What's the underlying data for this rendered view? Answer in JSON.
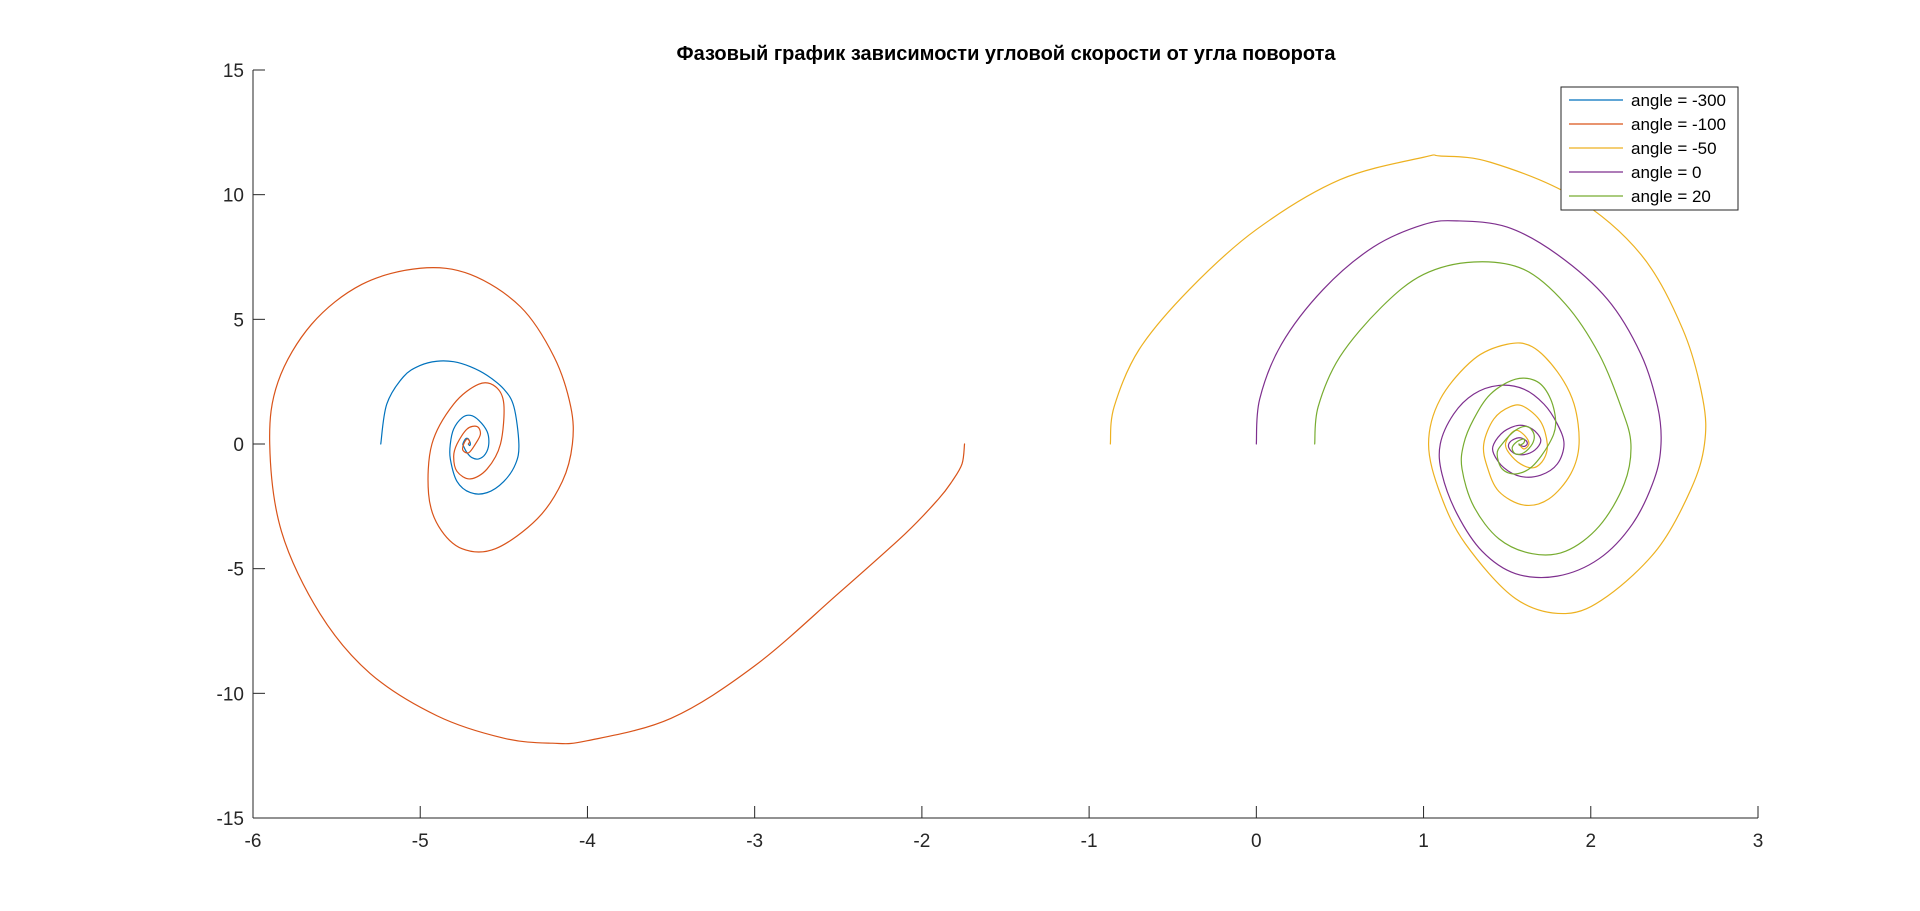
{
  "chart_data": {
    "type": "line",
    "title": "Фазовый график зависимости угловой скорости от угла поворота",
    "xlabel": "",
    "ylabel": "",
    "xlim": [
      -6,
      3
    ],
    "ylim": [
      -15,
      15
    ],
    "xticks": [
      -6,
      -5,
      -4,
      -3,
      -2,
      -1,
      0,
      1,
      2,
      3
    ],
    "xtick_labels": [
      "-6",
      "-5",
      "-4",
      "-3",
      "-2",
      "-1",
      "0",
      "1",
      "2",
      "3"
    ],
    "yticks": [
      -15,
      -10,
      -5,
      0,
      5,
      10,
      15
    ],
    "ytick_labels": [
      "-15",
      "-10",
      "-5",
      "0",
      "5",
      "10",
      "15"
    ],
    "grid": false,
    "box": false,
    "legend_position": "top-right",
    "series": [
      {
        "name": "angle = -300",
        "color": "#0072BD",
        "x": [
          -5.236,
          -5.2,
          -5.1,
          -5.0,
          -4.9,
          -4.8,
          -4.7,
          -4.6,
          -4.5,
          -4.44,
          -4.41,
          -4.43,
          -4.5,
          -4.6,
          -4.7,
          -4.78,
          -4.82,
          -4.82,
          -4.8,
          -4.75,
          -4.7,
          -4.65,
          -4.6,
          -4.59,
          -4.61,
          -4.65,
          -4.69,
          -4.72,
          -4.74,
          -4.745,
          -4.73,
          -4.715,
          -4.705,
          -4.7,
          -4.705,
          -4.712
        ],
        "y": [
          0.0,
          1.6,
          2.7,
          3.15,
          3.32,
          3.3,
          3.1,
          2.75,
          2.2,
          1.5,
          0.0,
          -0.8,
          -1.5,
          -1.95,
          -1.95,
          -1.5,
          -0.6,
          0.0,
          0.6,
          1.05,
          1.15,
          0.95,
          0.5,
          0.0,
          -0.4,
          -0.6,
          -0.55,
          -0.35,
          -0.1,
          0.0,
          0.2,
          0.22,
          0.12,
          0.0,
          -0.06,
          0.0
        ]
      },
      {
        "name": "angle = -100",
        "color": "#D95319",
        "x": [
          -1.745,
          -1.76,
          -1.82,
          -1.9,
          -2.1,
          -2.5,
          -3.0,
          -3.5,
          -4.0,
          -4.21,
          -4.5,
          -4.9,
          -5.3,
          -5.6,
          -5.83,
          -5.9,
          -5.85,
          -5.65,
          -5.35,
          -5.0,
          -4.7,
          -4.4,
          -4.2,
          -4.1,
          -4.09,
          -4.15,
          -4.3,
          -4.55,
          -4.75,
          -4.89,
          -4.95,
          -4.93,
          -4.8,
          -4.65,
          -4.55,
          -4.5,
          -4.52,
          -4.6,
          -4.7,
          -4.78,
          -4.8,
          -4.78,
          -4.72,
          -4.66,
          -4.64,
          -4.67,
          -4.71,
          -4.745,
          -4.74,
          -4.72,
          -4.705,
          -4.712
        ],
        "y": [
          0.0,
          -0.8,
          -1.5,
          -2.2,
          -3.6,
          -6.0,
          -8.9,
          -11.0,
          -11.9,
          -12.0,
          -11.8,
          -10.9,
          -9.2,
          -6.8,
          -3.5,
          0.0,
          2.5,
          4.8,
          6.4,
          7.05,
          6.8,
          5.5,
          3.5,
          1.5,
          0.0,
          -1.5,
          -3.0,
          -4.2,
          -4.2,
          -3.3,
          -2.0,
          0.0,
          1.6,
          2.4,
          2.3,
          1.6,
          0.0,
          -1.0,
          -1.4,
          -1.1,
          -0.5,
          0.0,
          0.6,
          0.7,
          0.4,
          0.0,
          -0.35,
          -0.25,
          0.0,
          0.2,
          0.1,
          0.0
        ]
      },
      {
        "name": "angle = -50",
        "color": "#EDB120",
        "x": [
          -0.873,
          -0.85,
          -0.7,
          -0.4,
          0.0,
          0.5,
          1.0,
          1.1,
          1.4,
          1.9,
          2.3,
          2.55,
          2.67,
          2.68,
          2.6,
          2.4,
          2.1,
          1.85,
          1.55,
          1.25,
          1.1,
          1.03,
          1.1,
          1.3,
          1.5,
          1.65,
          1.8,
          1.9,
          1.93,
          1.88,
          1.75,
          1.6,
          1.45,
          1.38,
          1.36,
          1.42,
          1.52,
          1.6,
          1.7,
          1.74,
          1.72,
          1.66,
          1.58,
          1.51,
          1.49,
          1.52,
          1.56,
          1.61,
          1.63,
          1.6,
          1.57
        ],
        "y": [
          0.0,
          1.5,
          3.8,
          6.2,
          8.6,
          10.6,
          11.5,
          11.55,
          11.3,
          9.9,
          7.6,
          4.6,
          1.8,
          0.0,
          -1.8,
          -4.2,
          -6.1,
          -6.8,
          -6.2,
          -4.0,
          -2.0,
          0.0,
          1.8,
          3.4,
          4.0,
          3.9,
          2.9,
          1.6,
          0.0,
          -1.2,
          -2.2,
          -2.45,
          -1.9,
          -0.9,
          0.0,
          1.0,
          1.5,
          1.5,
          0.9,
          0.0,
          -0.6,
          -0.95,
          -0.8,
          -0.35,
          0.0,
          0.4,
          0.55,
          0.3,
          0.0,
          -0.2,
          0.0
        ]
      },
      {
        "name": "angle = 0",
        "color": "#7E2F8E",
        "x": [
          0.0,
          0.02,
          0.15,
          0.4,
          0.7,
          1.0,
          1.2,
          1.5,
          1.8,
          2.1,
          2.3,
          2.4,
          2.42,
          2.38,
          2.25,
          2.05,
          1.8,
          1.55,
          1.35,
          1.2,
          1.11,
          1.1,
          1.18,
          1.3,
          1.45,
          1.6,
          1.72,
          1.8,
          1.84,
          1.8,
          1.7,
          1.58,
          1.48,
          1.42,
          1.42,
          1.48,
          1.57,
          1.65,
          1.7,
          1.68,
          1.62,
          1.55,
          1.51,
          1.52,
          1.57,
          1.61,
          1.62,
          1.6,
          1.575,
          1.571
        ],
        "y": [
          0.0,
          1.8,
          4.0,
          6.2,
          7.9,
          8.8,
          8.95,
          8.7,
          7.6,
          5.8,
          3.6,
          1.5,
          0.0,
          -1.4,
          -3.2,
          -4.6,
          -5.3,
          -5.2,
          -4.3,
          -2.8,
          -1.2,
          0.0,
          1.2,
          2.0,
          2.35,
          2.2,
          1.6,
          0.8,
          0.0,
          -0.8,
          -1.25,
          -1.3,
          -0.95,
          -0.4,
          0.0,
          0.5,
          0.75,
          0.6,
          0.2,
          -0.15,
          -0.4,
          -0.4,
          -0.15,
          0.1,
          0.25,
          0.15,
          0.0,
          -0.1,
          -0.03,
          0.0
        ]
      },
      {
        "name": "angle = 20",
        "color": "#77AC30",
        "x": [
          0.349,
          0.37,
          0.5,
          0.75,
          1.0,
          1.3,
          1.6,
          1.85,
          2.05,
          2.18,
          2.24,
          2.2,
          2.05,
          1.85,
          1.65,
          1.45,
          1.3,
          1.23,
          1.24,
          1.3,
          1.4,
          1.55,
          1.68,
          1.76,
          1.79,
          1.75,
          1.65,
          1.55,
          1.47,
          1.44,
          1.47,
          1.55,
          1.62,
          1.66,
          1.65,
          1.6,
          1.55,
          1.53,
          1.56,
          1.6,
          1.6,
          1.575,
          1.571
        ],
        "y": [
          0.0,
          1.5,
          3.5,
          5.5,
          6.8,
          7.3,
          7.0,
          5.6,
          3.6,
          1.5,
          0.0,
          -1.6,
          -3.3,
          -4.3,
          -4.4,
          -3.8,
          -2.5,
          -1.0,
          0.0,
          1.0,
          2.0,
          2.6,
          2.5,
          1.8,
          0.8,
          0.0,
          -0.9,
          -1.2,
          -1.0,
          -0.4,
          0.0,
          0.55,
          0.7,
          0.4,
          0.0,
          -0.35,
          -0.4,
          -0.15,
          0.1,
          0.2,
          0.05,
          -0.05,
          0.0
        ]
      }
    ]
  }
}
